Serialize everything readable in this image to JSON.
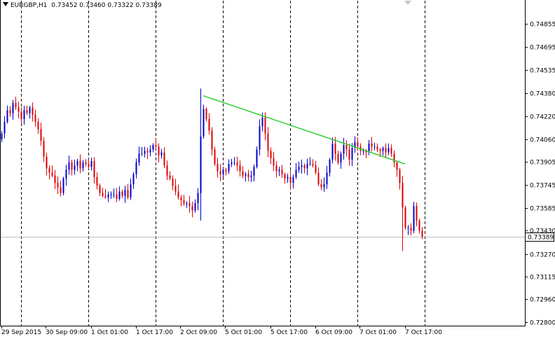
{
  "header": {
    "symbol": "EURGBP,H1",
    "ohlc": "0.73452 0.73460 0.73322 0.73389"
  },
  "colors": {
    "bull": "#0000cc",
    "bear": "#dd0000",
    "trendline": "#33cc33",
    "axis": "#000000",
    "grid": "#000000",
    "current_line": "#c0c0c0",
    "price_box_bg": "#ffffff"
  },
  "current_price_label": "0.73389",
  "chart_data": {
    "type": "candlestick",
    "ylim": [
      0.728,
      0.7501
    ],
    "y_ticks": [
      "0.74855",
      "0.74695",
      "0.74535",
      "0.74380",
      "0.74220",
      "0.74060",
      "0.73905",
      "0.73745",
      "0.73585",
      "0.73430",
      "0.73270",
      "0.73115",
      "0.72960",
      "0.72800"
    ],
    "x_ticks": [
      "29 Sep 2015",
      "30 Sep 09:00",
      "1 Oct 01:00",
      "1 Oct 17:00",
      "2 Oct 09:00",
      "5 Oct 01:00",
      "5 Oct 17:00",
      "6 Oct 09:00",
      "7 Oct 01:00",
      "7 Oct 17:00"
    ],
    "current_price": 0.73389,
    "trendline": [
      {
        "time_index": 72,
        "price": 0.7436
      },
      {
        "time_index": 144,
        "price": 0.7389
      }
    ],
    "closes": [
      0.741,
      0.7418,
      0.7426,
      0.7424,
      0.7431,
      0.7428,
      0.7425,
      0.742,
      0.7426,
      0.7424,
      0.7428,
      0.7423,
      0.7418,
      0.7413,
      0.7405,
      0.7394,
      0.7386,
      0.7383,
      0.7381,
      0.7376,
      0.7373,
      0.7369,
      0.7379,
      0.7385,
      0.739,
      0.7385,
      0.7388,
      0.7391,
      0.7386,
      0.739,
      0.7389,
      0.7387,
      0.7391,
      0.738,
      0.7374,
      0.7369,
      0.7367,
      0.7366,
      0.7368,
      0.7368,
      0.7368,
      0.7365,
      0.737,
      0.7367,
      0.7371,
      0.7366,
      0.7375,
      0.7382,
      0.739,
      0.7396,
      0.7396,
      0.7398,
      0.7397,
      0.7399,
      0.7402,
      0.7401,
      0.7395,
      0.7397,
      0.7388,
      0.7381,
      0.7379,
      0.7374,
      0.737,
      0.7366,
      0.7364,
      0.7362,
      0.7362,
      0.736,
      0.7357,
      0.7362,
      0.7369,
      0.7408,
      0.7427,
      0.742,
      0.7412,
      0.7399,
      0.7389,
      0.7384,
      0.7382,
      0.7385,
      0.7384,
      0.7389,
      0.739,
      0.739,
      0.7388,
      0.7384,
      0.7381,
      0.7382,
      0.738,
      0.7381,
      0.7387,
      0.7399,
      0.7415,
      0.7421,
      0.741,
      0.7398,
      0.7393,
      0.7388,
      0.7384,
      0.7385,
      0.7382,
      0.7379,
      0.738,
      0.7376,
      0.738,
      0.7385,
      0.7387,
      0.7388,
      0.7386,
      0.7389,
      0.7389,
      0.7388,
      0.7383,
      0.7375,
      0.7373,
      0.7375,
      0.7383,
      0.7392,
      0.7403,
      0.7396,
      0.739,
      0.7396,
      0.7402,
      0.7399,
      0.7392,
      0.74,
      0.7404,
      0.7401,
      0.7398,
      0.7398,
      0.7397,
      0.7403,
      0.7401,
      0.7401,
      0.7399,
      0.7398,
      0.74,
      0.7397,
      0.74,
      0.7396,
      0.739,
      0.7385,
      0.7376,
      0.7359,
      0.7345,
      0.7345,
      0.7343,
      0.736,
      0.735,
      0.7343,
      0.7339
    ]
  }
}
